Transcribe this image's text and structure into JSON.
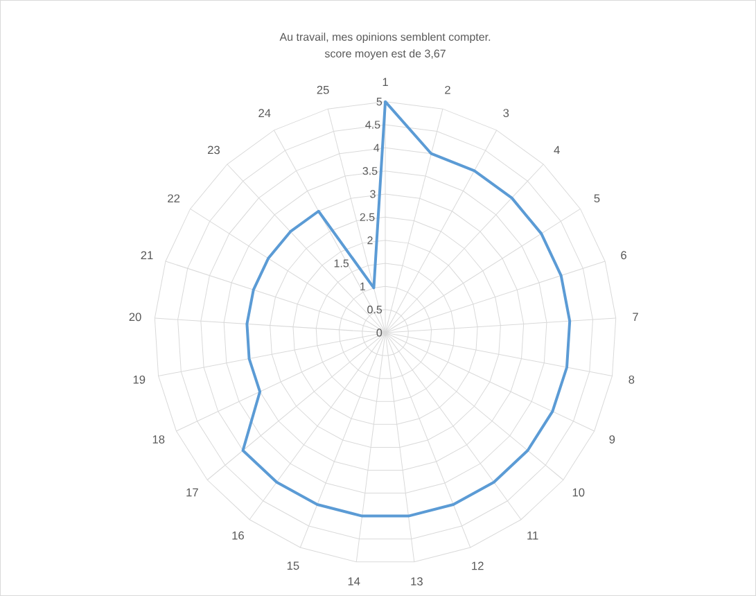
{
  "chart_data": {
    "type": "radar",
    "title": "Au travail, mes opinions semblent compter.",
    "subtitle": "score moyen est de 3,67",
    "categories": [
      "1",
      "2",
      "3",
      "4",
      "5",
      "6",
      "7",
      "8",
      "9",
      "10",
      "11",
      "12",
      "13",
      "14",
      "15",
      "16",
      "17",
      "18",
      "19",
      "20",
      "21",
      "22",
      "23",
      "24",
      "25"
    ],
    "series": [
      {
        "color": "#5b9bd5",
        "values": [
          5,
          4,
          4,
          4,
          4,
          4,
          4,
          4,
          4,
          4,
          4,
          4,
          4,
          4,
          4,
          4,
          4,
          3,
          3,
          3,
          3,
          3,
          3,
          3,
          1
        ]
      }
    ],
    "ylim": [
      0,
      5
    ],
    "yticks": [
      0,
      0.5,
      1,
      1.5,
      2,
      2.5,
      3,
      3.5,
      4,
      4.5,
      5
    ],
    "grid": true
  }
}
